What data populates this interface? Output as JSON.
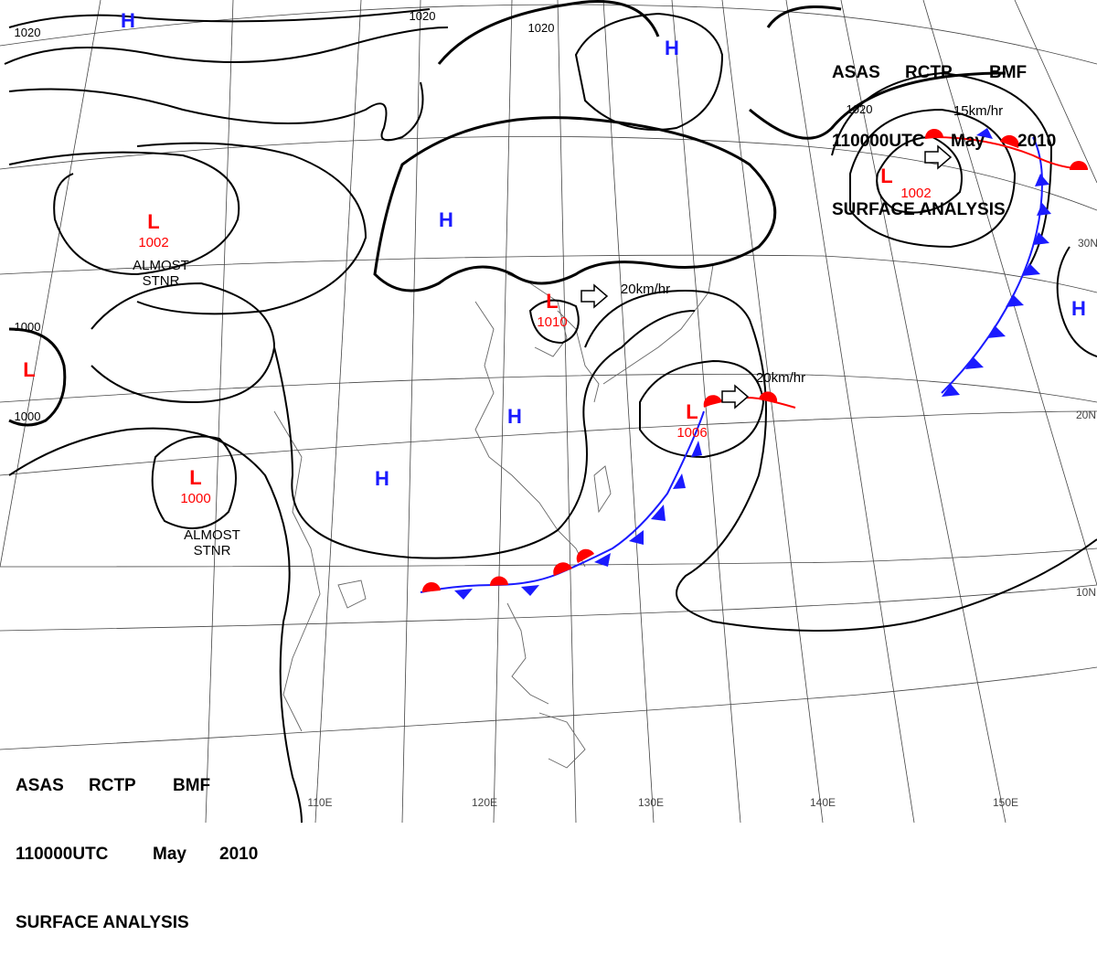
{
  "header": {
    "line1": [
      "ASAS",
      "RCTP",
      "BMF"
    ],
    "line2": [
      "110000UTC",
      "May",
      "2010"
    ],
    "line3": "SURFACE ANALYSIS"
  },
  "colors": {
    "isobar": "#000000",
    "grid": "#444444",
    "coast": "#555555",
    "high": "#1a1aff",
    "low": "#ff0000",
    "cold_front": "#1a1aff",
    "warm_front": "#ff0000"
  },
  "longitude_labels": [
    "110E",
    "120E",
    "130E",
    "140E",
    "150E"
  ],
  "latitude_labels": [
    "30N",
    "20N",
    "10N"
  ],
  "pressure_centers": [
    {
      "type": "H",
      "value": ""
    },
    {
      "type": "H",
      "value": ""
    },
    {
      "type": "H",
      "value": ""
    },
    {
      "type": "H",
      "value": ""
    },
    {
      "type": "H",
      "value": ""
    },
    {
      "type": "H",
      "value": ""
    },
    {
      "type": "L",
      "value": "1002"
    },
    {
      "type": "L",
      "value": ""
    },
    {
      "type": "L",
      "value": "1000"
    },
    {
      "type": "L",
      "value": "1010"
    },
    {
      "type": "L",
      "value": "1006"
    },
    {
      "type": "L",
      "value": "1002"
    }
  ],
  "isobar_labels": [
    "1020",
    "1020",
    "1020",
    "1000",
    "1000"
  ],
  "annotations": [
    {
      "line1": "ALMOST",
      "line2": "STNR"
    },
    {
      "line1": "ALMOST",
      "line2": "STNR"
    }
  ],
  "motion_vectors": [
    "20km/hr",
    "20km/hr",
    "15km/hr"
  ]
}
